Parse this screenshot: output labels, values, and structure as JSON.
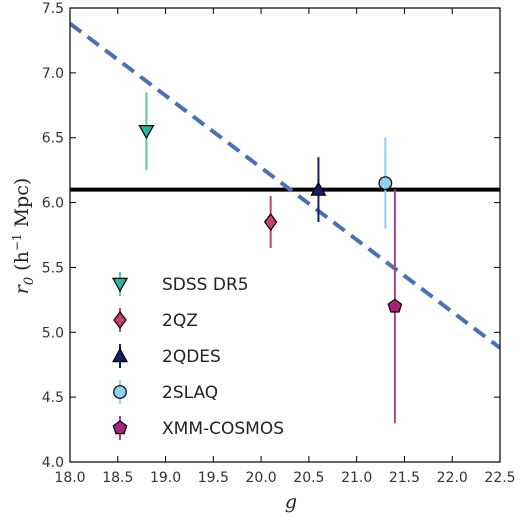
{
  "chart_data": {
    "type": "scatter",
    "title": "",
    "xlabel": "g",
    "ylabel_main": "r",
    "ylabel_sub": "0",
    "ylabel_open": " (h",
    "ylabel_sup": "−1",
    "ylabel_close": " Mpc)",
    "xlim": [
      18.0,
      22.5
    ],
    "ylim": [
      4.0,
      7.5
    ],
    "xticks": [
      "18.0",
      "18.5",
      "19.0",
      "19.5",
      "20.0",
      "20.5",
      "21.0",
      "21.5",
      "22.0",
      "22.5"
    ],
    "yticks": [
      "4.0",
      "4.5",
      "5.0",
      "5.5",
      "6.0",
      "6.5",
      "7.0",
      "7.5"
    ],
    "grid": false,
    "legend_position": "lower-left",
    "series": [
      {
        "name": "SDSS DR5",
        "x": 18.8,
        "y": 6.55,
        "yerr_low": 6.25,
        "yerr_high": 6.85,
        "marker": "triangle-down",
        "color": "#2bb59a",
        "errcolor": "#5cc8a8"
      },
      {
        "name": "2QZ",
        "x": 20.1,
        "y": 5.85,
        "yerr_low": 5.65,
        "yerr_high": 6.05,
        "marker": "diamond",
        "color": "#c0446e",
        "errcolor": "#c0446e"
      },
      {
        "name": "2QDES",
        "x": 20.6,
        "y": 6.1,
        "yerr_low": 5.85,
        "yerr_high": 6.35,
        "marker": "triangle-up",
        "color": "#1c1a6b",
        "errcolor": "#1c1a6b"
      },
      {
        "name": "2SLAQ",
        "x": 21.3,
        "y": 6.15,
        "yerr_low": 5.8,
        "yerr_high": 6.5,
        "marker": "circle",
        "color": "#8fd0ec",
        "errcolor": "#8fd0ec"
      },
      {
        "name": "XMM-COSMOS",
        "x": 21.4,
        "y": 5.2,
        "yerr_low": 4.3,
        "yerr_high": 6.1,
        "marker": "pentagon",
        "color": "#a8247a",
        "errcolor": "#b5408a"
      }
    ],
    "reference_lines": [
      {
        "kind": "horizontal",
        "y": 6.1,
        "color": "#000000"
      },
      {
        "kind": "dashed",
        "x": [
          18.0,
          22.5
        ],
        "y": [
          7.38,
          4.88
        ],
        "color": "#4a72b0"
      }
    ]
  }
}
